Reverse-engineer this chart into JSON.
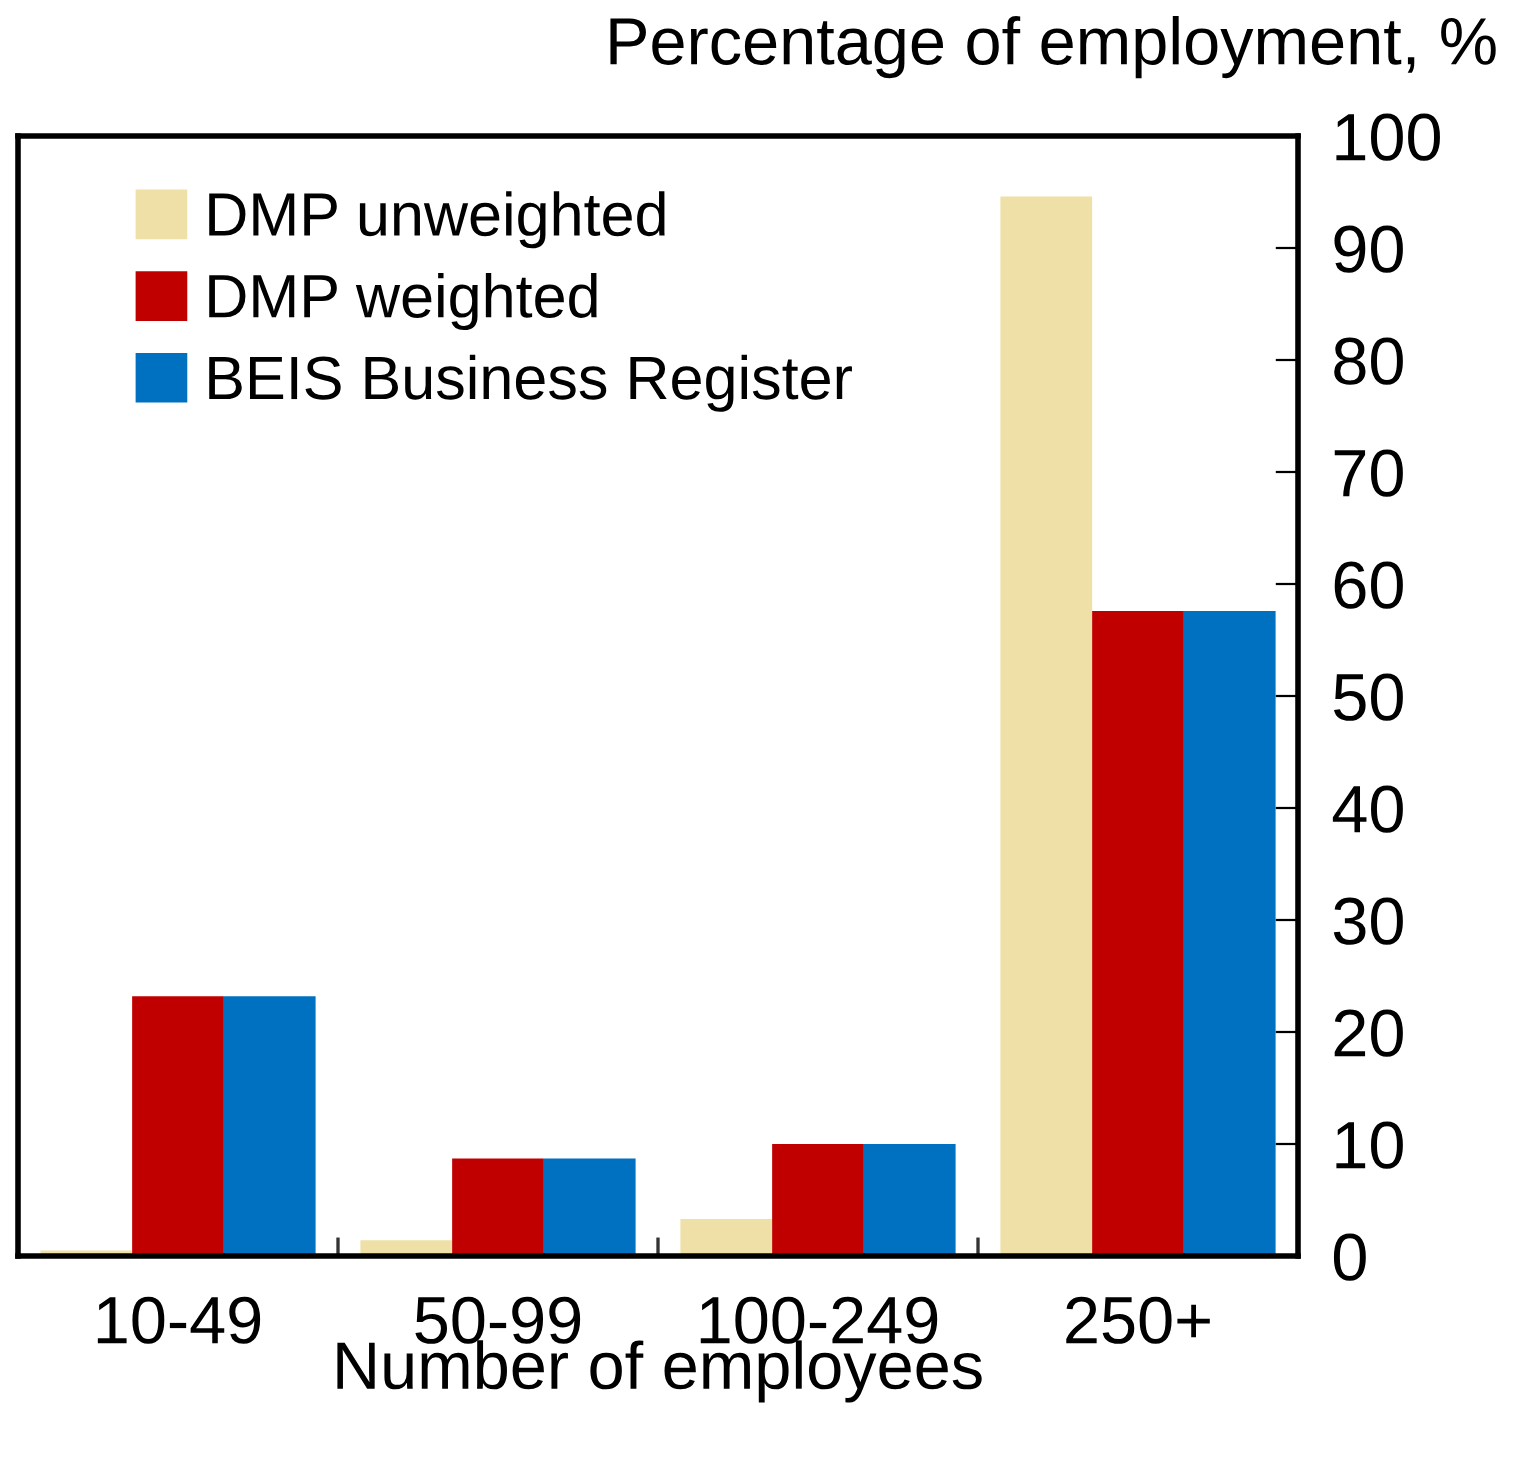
{
  "chart_data": {
    "type": "bar",
    "ylabel": "Percentage of employment, %",
    "xlabel": "Number of employees",
    "categories": [
      "10-49",
      "50-99",
      "100-249",
      "250+"
    ],
    "series": [
      {
        "name": "DMP unweighted",
        "color": "#eee0a6",
        "values": [
          0.5,
          1.4,
          3.3,
          94.6
        ]
      },
      {
        "name": "DMP weighted",
        "color": "#c00000",
        "values": [
          23.2,
          8.7,
          10.0,
          57.6
        ]
      },
      {
        "name": "BEIS Business Register",
        "color": "#0070c0",
        "values": [
          23.2,
          8.7,
          10.0,
          57.6
        ]
      }
    ],
    "ylim": [
      0,
      100
    ],
    "yticks": [
      0,
      10,
      20,
      30,
      40,
      50,
      60,
      70,
      80,
      90,
      100
    ],
    "grid": false,
    "legend": "top left"
  }
}
